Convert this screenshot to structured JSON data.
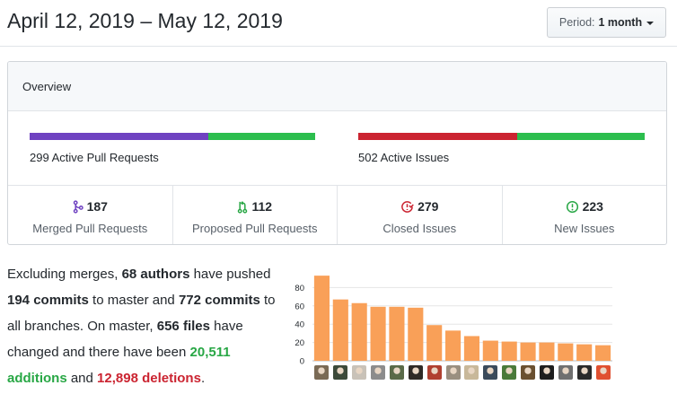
{
  "header": {
    "range_title": "April 12, 2019 – May 12, 2019",
    "period_label": "Period:",
    "period_value": "1 month"
  },
  "overview": {
    "title": "Overview",
    "pull_requests_bar": {
      "label": "299 Active Pull Requests",
      "segments": [
        {
          "name": "merged",
          "value": 187,
          "color": "#6f42c1"
        },
        {
          "name": "proposed",
          "value": 112,
          "color": "#2cbe4e"
        }
      ]
    },
    "issues_bar": {
      "label": "502 Active Issues",
      "segments": [
        {
          "name": "closed",
          "value": 279,
          "color": "#cb2431"
        },
        {
          "name": "new",
          "value": 223,
          "color": "#2cbe4e"
        }
      ]
    },
    "stats": [
      {
        "icon": "git-merge-icon",
        "value": "187",
        "label": "Merged Pull Requests",
        "color": "#6f42c1"
      },
      {
        "icon": "git-pull-request-icon",
        "value": "112",
        "label": "Proposed Pull Requests",
        "color": "#28a745"
      },
      {
        "icon": "issue-closed-icon",
        "value": "279",
        "label": "Closed Issues",
        "color": "#cb2431"
      },
      {
        "icon": "issue-opened-icon",
        "value": "223",
        "label": "New Issues",
        "color": "#28a745"
      }
    ]
  },
  "summary": {
    "t1": "Excluding merges, ",
    "authors": "68 authors",
    "t2": " have pushed ",
    "commits_master": "194 commits",
    "t3": " to master and ",
    "commits_all": "772 commits",
    "t4": " to all branches. On master, ",
    "files": "656 files",
    "t5": " have changed and there have been ",
    "additions": "20,511 additions",
    "t6": " and ",
    "deletions": "12,898 deletions",
    "t7": "."
  },
  "chart_data": {
    "type": "bar",
    "categories": [
      "",
      "",
      "",
      "",
      "",
      "",
      "",
      "",
      "",
      "",
      "",
      "",
      "",
      "",
      "",
      ""
    ],
    "values": [
      93,
      67,
      63,
      59,
      59,
      58,
      39,
      33,
      27,
      22,
      21,
      20,
      20,
      19,
      18,
      17
    ],
    "yticks": [
      "0",
      "20",
      "40",
      "60",
      "80"
    ],
    "ylim": [
      0,
      100
    ],
    "bar_color": "#f9a058",
    "grid": true
  },
  "avatar_colors": [
    "#7a6a55",
    "#3d4a3a",
    "#c9c2b8",
    "#8c8c8c",
    "#5a6a48",
    "#2f2a26",
    "#b04030",
    "#9a8f80",
    "#c8b89a",
    "#3b4b5b",
    "#4a7a3a",
    "#6a5030",
    "#1e1e1e",
    "#707070",
    "#2a2a2a",
    "#e05030"
  ]
}
